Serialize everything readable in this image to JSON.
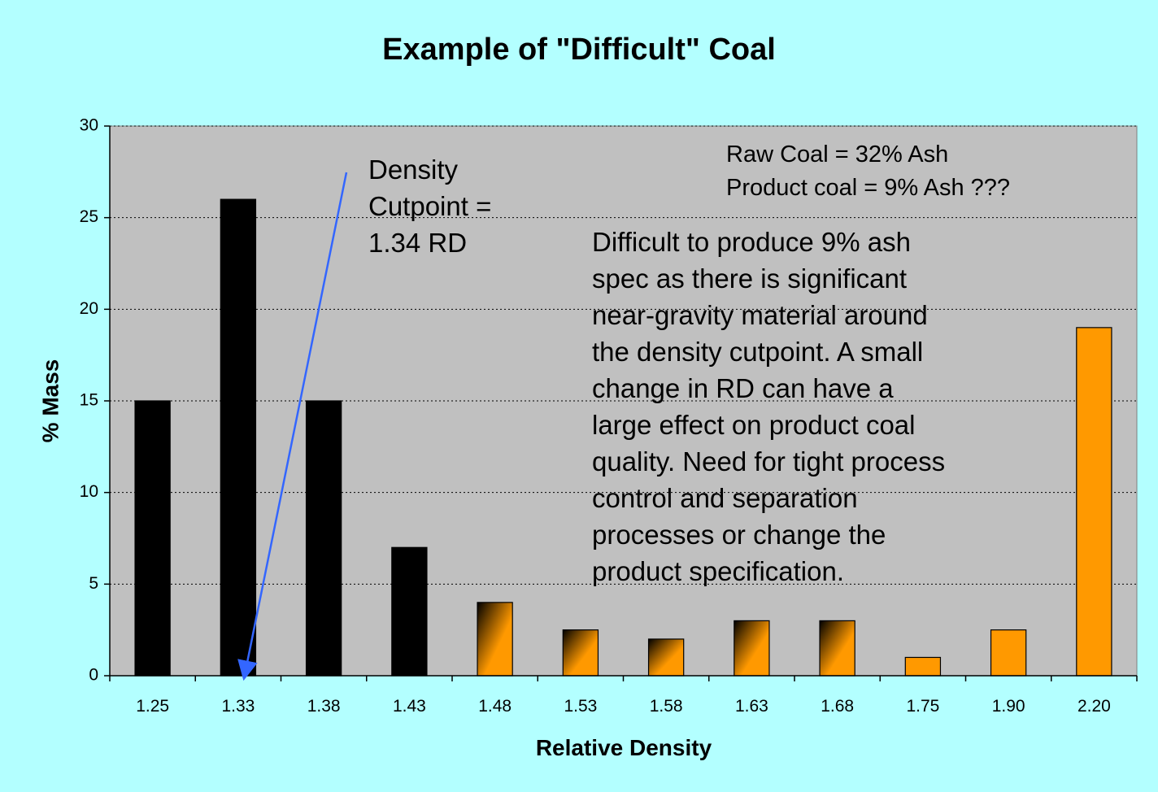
{
  "chart_data": {
    "type": "bar",
    "title": "Example of \"Difficult\" Coal",
    "xlabel": "Relative Density",
    "ylabel": "% Mass",
    "ylim": [
      0,
      30
    ],
    "yticks": [
      "0",
      "5",
      "10",
      "15",
      "20",
      "25",
      "30"
    ],
    "grid": "horizontal dashed",
    "categories": [
      "1.25",
      "1.33",
      "1.38",
      "1.43",
      "1.48",
      "1.53",
      "1.58",
      "1.63",
      "1.68",
      "1.75",
      "1.90",
      "2.20"
    ],
    "values": [
      15,
      26,
      15,
      7,
      4,
      2.5,
      2,
      3,
      3,
      1,
      2.5,
      19
    ],
    "bar_styles": [
      "black",
      "black",
      "black",
      "black",
      "black-orange-gradient",
      "black-orange-gradient",
      "black-orange-gradient",
      "black-orange-gradient",
      "black-orange-gradient",
      "orange",
      "orange",
      "orange"
    ],
    "colors": {
      "black": "#000000",
      "orange": "#ff9900",
      "plot_bg": "#c0c0c0",
      "page_bg": "#b3ffff",
      "arrow": "#3366ff"
    },
    "annotations": {
      "cutpoint": [
        "Density",
        "Cutpoint =",
        "1.34 RD"
      ],
      "raw_product": [
        "Raw Coal = 32% Ash",
        "Product coal = 9% Ash ???"
      ],
      "body": [
        "Difficult to produce 9% ash",
        "spec as there is significant",
        "near-gravity material around",
        "the density cutpoint.  A small",
        "change in RD can have a",
        "large effect on product coal",
        "quality.  Need for tight process",
        "control and separation",
        "processes or change the",
        "product specification."
      ]
    },
    "arrow": {
      "from_label": "Density Cutpoint = 1.34 RD",
      "points_to": "1.34"
    }
  }
}
